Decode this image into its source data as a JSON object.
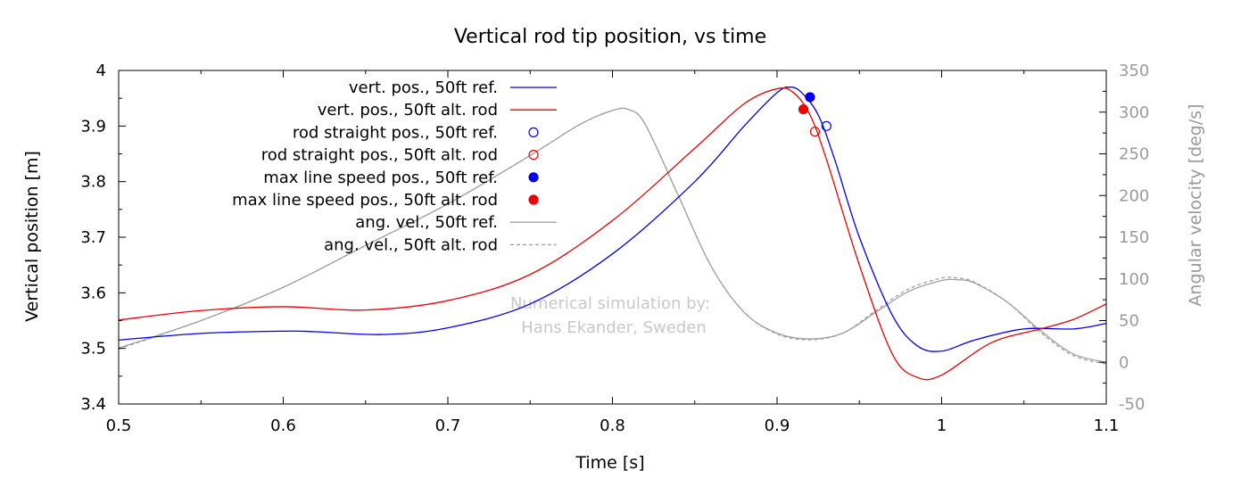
{
  "chart_data": {
    "type": "line",
    "title": "Vertical rod tip position, vs time",
    "xlabel": "Time [s]",
    "ylabel": "Vertical position [m]",
    "y2label": "Angular velocity [deg/s]",
    "xlim": [
      0.5,
      1.1
    ],
    "ylim": [
      3.4,
      4.0
    ],
    "y2lim": [
      -50,
      350
    ],
    "xticks": [
      "0.5",
      "0.6",
      "0.7",
      "0.8",
      "0.9",
      "1",
      "1.1"
    ],
    "yticks": [
      "3.4",
      "3.5",
      "3.6",
      "3.7",
      "3.8",
      "3.9",
      "4"
    ],
    "y2ticks": [
      "-50",
      "0",
      "50",
      "100",
      "150",
      "200",
      "250",
      "300",
      "350"
    ],
    "grid": false,
    "legend_position": "top-left",
    "watermark": [
      "Numerical simulation by:",
      "Hans Ekander, Sweden"
    ],
    "series": [
      {
        "name": "vert. pos., 50ft ref.",
        "kind": "line",
        "axis": "y",
        "color": "#0000ee",
        "dash": "",
        "x": [
          0.5,
          0.55,
          0.6,
          0.62,
          0.66,
          0.7,
          0.75,
          0.8,
          0.85,
          0.88,
          0.9,
          0.908,
          0.915,
          0.925,
          0.935,
          0.95,
          0.97,
          0.985,
          1.0,
          1.02,
          1.05,
          1.08,
          1.1
        ],
        "y": [
          3.515,
          3.527,
          3.531,
          3.53,
          3.525,
          3.537,
          3.58,
          3.67,
          3.8,
          3.9,
          3.96,
          3.97,
          3.96,
          3.92,
          3.84,
          3.7,
          3.56,
          3.505,
          3.495,
          3.515,
          3.535,
          3.535,
          3.545
        ]
      },
      {
        "name": "vert. pos., 50ft alt. rod",
        "kind": "line",
        "axis": "y",
        "color": "#ee0000",
        "dash": "",
        "x": [
          0.5,
          0.55,
          0.6,
          0.65,
          0.7,
          0.75,
          0.8,
          0.85,
          0.88,
          0.9,
          0.91,
          0.92,
          0.93,
          0.95,
          0.97,
          0.985,
          1.0,
          1.03,
          1.06,
          1.08,
          1.1
        ],
        "y": [
          3.551,
          3.568,
          3.575,
          3.569,
          3.586,
          3.633,
          3.73,
          3.86,
          3.94,
          3.967,
          3.96,
          3.92,
          3.84,
          3.65,
          3.49,
          3.448,
          3.452,
          3.51,
          3.535,
          3.552,
          3.58
        ]
      },
      {
        "name": "rod straight pos., 50ft ref.",
        "kind": "open-marker",
        "axis": "y",
        "color": "#0000ee",
        "x": [
          0.93
        ],
        "y": [
          3.9
        ]
      },
      {
        "name": "rod straight pos., 50ft alt. rod",
        "kind": "open-marker",
        "axis": "y",
        "color": "#ee0000",
        "x": [
          0.923
        ],
        "y": [
          3.89
        ]
      },
      {
        "name": "max line speed pos., 50ft ref.",
        "kind": "filled-marker",
        "axis": "y",
        "color": "#0000ee",
        "x": [
          0.92
        ],
        "y": [
          3.952
        ]
      },
      {
        "name": "max line speed pos., 50ft alt. rod",
        "kind": "filled-marker",
        "axis": "y",
        "color": "#ee0000",
        "x": [
          0.916
        ],
        "y": [
          3.93
        ]
      },
      {
        "name": "ang. vel., 50ft ref.",
        "kind": "line",
        "axis": "y2",
        "color": "#a0a0a0",
        "dash": "",
        "x": [
          0.5,
          0.55,
          0.6,
          0.65,
          0.7,
          0.75,
          0.78,
          0.8,
          0.81,
          0.82,
          0.84,
          0.86,
          0.88,
          0.9,
          0.92,
          0.94,
          0.96,
          0.98,
          1.0,
          1.01,
          1.02,
          1.04,
          1.06,
          1.08,
          1.1
        ],
        "y": [
          17,
          50,
          90,
          140,
          190,
          248,
          285,
          302,
          303,
          285,
          200,
          115,
          60,
          35,
          28,
          35,
          60,
          85,
          98,
          99,
          95,
          72,
          38,
          10,
          0
        ]
      },
      {
        "name": "ang. vel., 50ft alt. rod",
        "kind": "line",
        "axis": "y2",
        "color": "#a0a0a0",
        "dash": "4,3",
        "x": [
          0.5,
          0.55,
          0.6,
          0.65,
          0.7,
          0.75,
          0.78,
          0.8,
          0.81,
          0.82,
          0.84,
          0.86,
          0.88,
          0.9,
          0.92,
          0.94,
          0.96,
          0.98,
          1.0,
          1.01,
          1.02,
          1.04,
          1.06,
          1.08,
          1.1
        ],
        "y": [
          16,
          50,
          90,
          140,
          190,
          248,
          285,
          302,
          303,
          285,
          200,
          115,
          60,
          34,
          27,
          35,
          62,
          88,
          101,
          101,
          96,
          72,
          36,
          8,
          -2
        ]
      }
    ]
  }
}
